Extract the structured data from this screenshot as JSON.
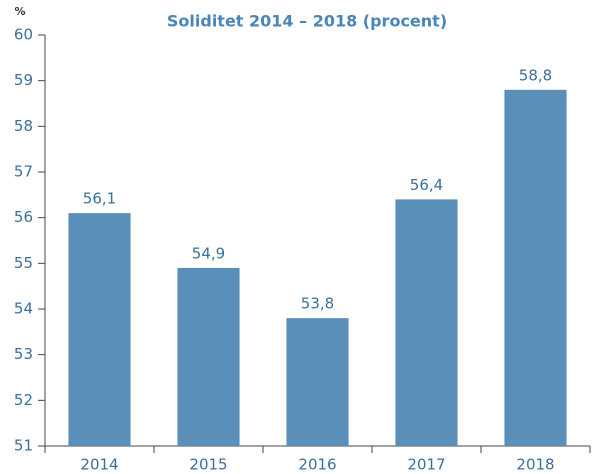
{
  "chart_data": {
    "type": "bar",
    "title": "Soliditet 2014 – 2018 (procent)",
    "y_label": "%",
    "categories": [
      "2014",
      "2015",
      "2016",
      "2017",
      "2018"
    ],
    "values": [
      56.1,
      54.9,
      53.8,
      56.4,
      58.8
    ],
    "value_labels": [
      "56,1",
      "54,9",
      "53,8",
      "56,4",
      "58,8"
    ],
    "color": "#5a8fba",
    "ylim": [
      51,
      60
    ],
    "yticks": [
      51,
      52,
      53,
      54,
      55,
      56,
      57,
      58,
      59,
      60
    ],
    "grid": false
  }
}
